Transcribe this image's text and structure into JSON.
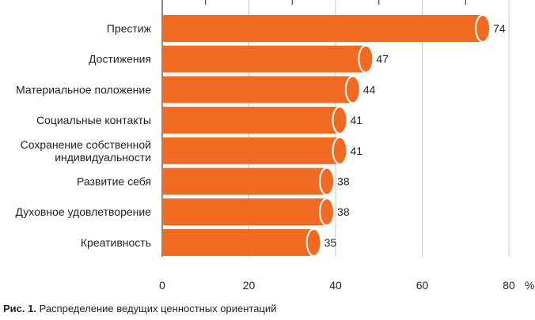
{
  "chart_data": {
    "type": "bar",
    "orientation": "horizontal",
    "categories": [
      [
        "Престиж"
      ],
      [
        "Достижения"
      ],
      [
        "Материальное положение"
      ],
      [
        "Социальные контакты"
      ],
      [
        "Сохранение собственной",
        "индивидуальности"
      ],
      [
        "Развитие себя"
      ],
      [
        "Духовное удовлетворение"
      ],
      [
        "Креативность"
      ]
    ],
    "values": [
      74,
      47,
      44,
      41,
      41,
      38,
      38,
      35
    ],
    "xlim": [
      0,
      80
    ],
    "xticks": [
      0,
      20,
      40,
      60,
      80
    ],
    "unit": "%",
    "grid": true,
    "bar_color": "#f06b21"
  },
  "caption": {
    "prefix": "Рис. 1.",
    "text": " Распределение ведущих ценностных ориентаций"
  }
}
